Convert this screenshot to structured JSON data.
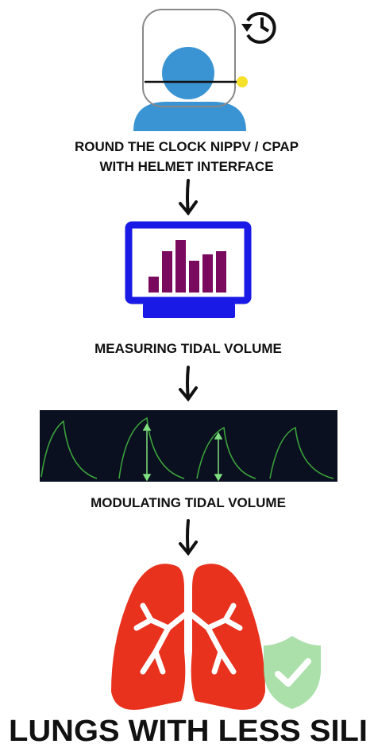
{
  "steps": [
    {
      "label_lines": [
        "ROUND THE CLOCK NIPPV / CPAP",
        "WITH HELMET INTERFACE"
      ]
    },
    {
      "label": "MEASURING TIDAL VOLUME"
    },
    {
      "label": "MODULATING TIDAL VOLUME"
    }
  ],
  "outcome": "LUNGS WITH LESS SILI"
}
